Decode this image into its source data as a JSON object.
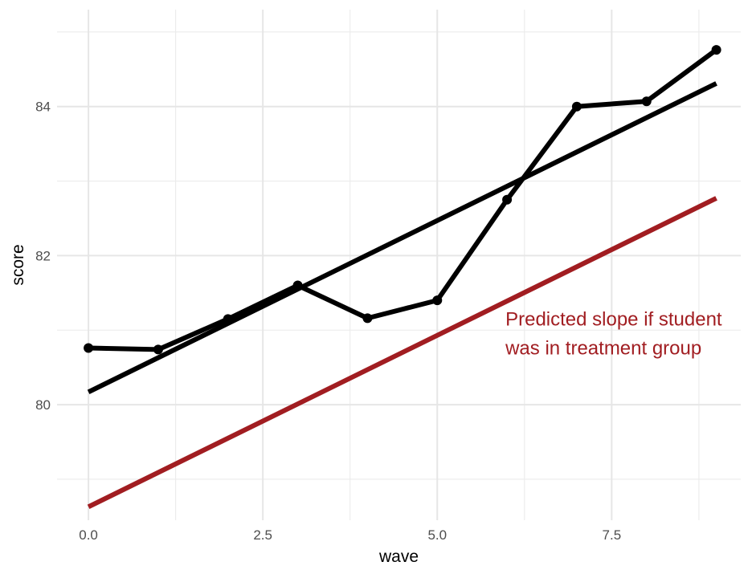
{
  "chart_data": {
    "type": "line",
    "title": "",
    "xlabel": "wave",
    "ylabel": "score",
    "xlim": [
      -0.45,
      9.35
    ],
    "ylim": [
      78.45,
      85.3
    ],
    "x_ticks": [
      0.0,
      2.5,
      5.0,
      7.5
    ],
    "x_tick_labels": [
      "0.0",
      "2.5",
      "5.0",
      "7.5"
    ],
    "y_ticks": [
      80,
      82,
      84
    ],
    "y_tick_labels": [
      "80",
      "82",
      "84"
    ],
    "x_minor_ticks": [
      1.25,
      3.75,
      6.25,
      8.75
    ],
    "y_minor_ticks": [
      79,
      81,
      83,
      85
    ],
    "grid": true,
    "legend": "none",
    "series": [
      {
        "style": "line+points",
        "color": "#000000",
        "x": [
          0,
          1,
          2,
          3,
          4,
          5,
          6,
          7,
          8,
          9
        ],
        "values": [
          80.76,
          80.74,
          81.15,
          81.6,
          81.16,
          81.4,
          82.75,
          84.0,
          84.07,
          84.76
        ]
      },
      {
        "style": "line",
        "color": "#000000",
        "x": [
          0,
          9
        ],
        "values": [
          80.17,
          84.31
        ]
      },
      {
        "style": "line",
        "color": "#A11D21",
        "x": [
          0,
          9
        ],
        "values": [
          78.63,
          82.77
        ]
      }
    ],
    "annotations": [
      {
        "lines": [
          "Predicted slope if student",
          "was in treatment group"
        ],
        "x": 6.0,
        "y": 81.15,
        "color": "#A11D21"
      }
    ]
  }
}
